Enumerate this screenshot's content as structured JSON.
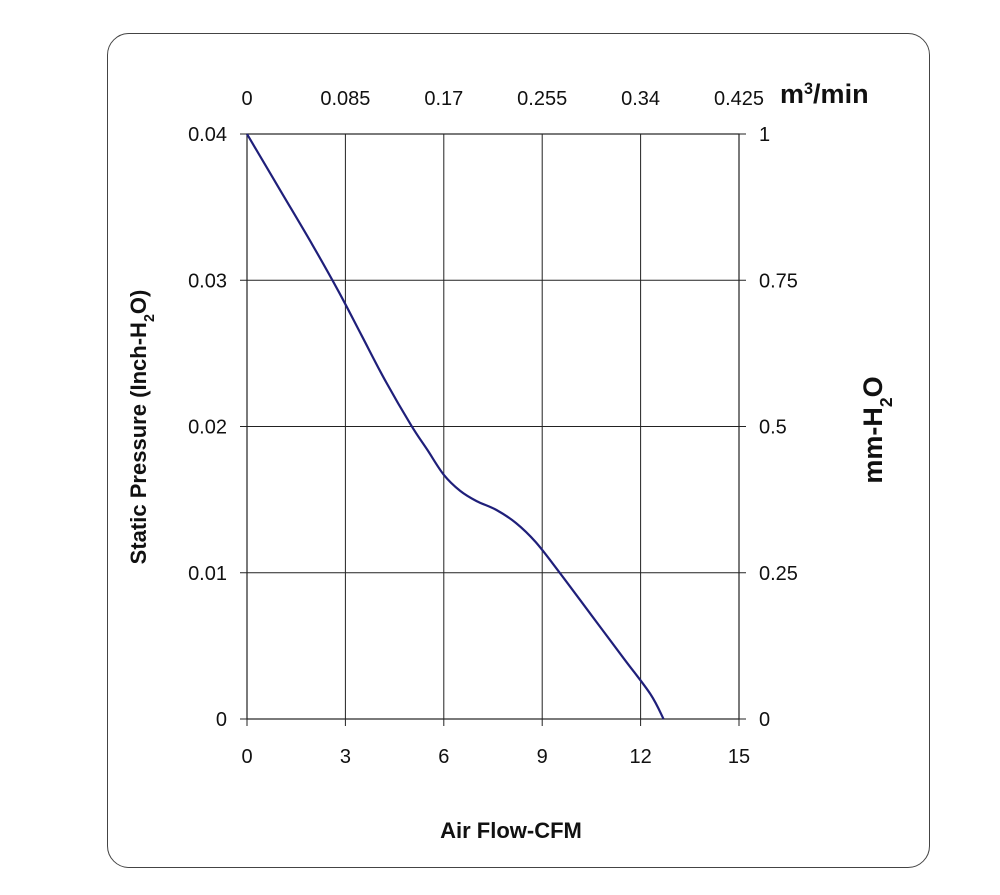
{
  "chart_data": {
    "type": "line",
    "xlabel": "Air Flow-CFM",
    "ylabel": "Static Pressure (Inch-H₂O)",
    "secondary_y_label": "mm-H₂O",
    "secondary_x_label": "m³/min",
    "xlim": [
      0,
      15
    ],
    "ylim": [
      0,
      0.04
    ],
    "x_ticks": [
      "0",
      "3",
      "6",
      "9",
      "12",
      "15"
    ],
    "y_ticks": [
      "0",
      "0.01",
      "0.02",
      "0.03",
      "0.04"
    ],
    "top_ticks": [
      "0",
      "0.085",
      "0.17",
      "0.255",
      "0.34",
      "0.425"
    ],
    "right_ticks": [
      "0",
      "0.25",
      "0.5",
      "0.75",
      "1"
    ],
    "grid": true,
    "line_color": "#1f1f7a",
    "series": [
      {
        "x": [
          0,
          1,
          2,
          2.8,
          3.5,
          4.2,
          5,
          5.5,
          6,
          6.5,
          7,
          7.6,
          8.2,
          8.8,
          9.5,
          10.5,
          11.5,
          12.3,
          12.7
        ],
        "y": [
          0.04,
          0.0362,
          0.0324,
          0.0292,
          0.0262,
          0.0232,
          0.0201,
          0.0184,
          0.0167,
          0.0156,
          0.0149,
          0.0143,
          0.0134,
          0.0121,
          0.0101,
          0.0071,
          0.0041,
          0.0017,
          0.0
        ]
      }
    ]
  }
}
